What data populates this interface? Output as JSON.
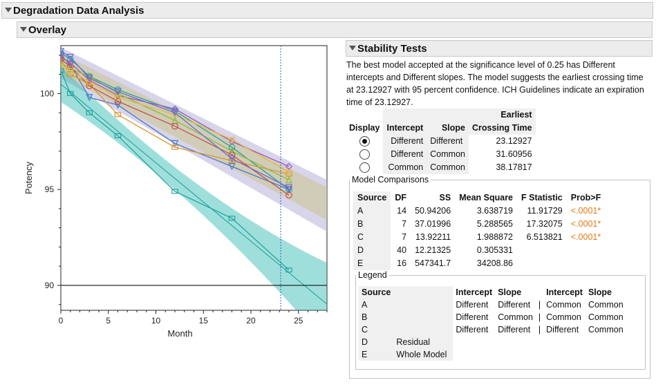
{
  "header": {
    "title": "Degradation Data Analysis"
  },
  "overlay": {
    "title": "Overlay"
  },
  "stability": {
    "title": "Stability Tests",
    "description": "The best model accepted at the significance level of 0.25 has Different intercepts and Different slopes. The model suggests the earliest crossing time at 23.12927 with 95 percent confidence. ICH Guidelines indicate an expiration time of 23.12927.",
    "table": {
      "headers": {
        "display": "Display",
        "intercept": "Intercept",
        "slope": "Slope",
        "crossing_line1": "Earliest",
        "crossing_line2": "Crossing Time"
      },
      "rows": [
        {
          "intercept": "Different",
          "slope": "Different",
          "crossing": "23.12927",
          "selected": true
        },
        {
          "intercept": "Different",
          "slope": "Common",
          "crossing": "31.60956",
          "selected": false
        },
        {
          "intercept": "Common",
          "slope": "Common",
          "crossing": "38.17817",
          "selected": false
        }
      ]
    }
  },
  "model_comparisons": {
    "title": "Model Comparisons",
    "headers": {
      "source": "Source",
      "df": "DF",
      "ss": "SS",
      "ms": "Mean Square",
      "f": "F Statistic",
      "p": "Prob>F"
    },
    "rows": [
      {
        "source": "A",
        "df": "14",
        "ss": "50.94206",
        "ms": "3.638719",
        "f": "11.91729",
        "p": "<.0001*"
      },
      {
        "source": "B",
        "df": "7",
        "ss": "37.01996",
        "ms": "5.288565",
        "f": "17.32075",
        "p": "<.0001*"
      },
      {
        "source": "C",
        "df": "7",
        "ss": "13.92211",
        "ms": "1.988872",
        "f": "6.513821",
        "p": "<.0001*"
      },
      {
        "source": "D",
        "df": "40",
        "ss": "12.21325",
        "ms": "0.305331",
        "f": "",
        "p": ""
      },
      {
        "source": "E",
        "df": "16",
        "ss": "547341.7",
        "ms": "34208.86",
        "f": "",
        "p": ""
      }
    ],
    "sig_color": "#e07a10"
  },
  "legend": {
    "title": "Legend",
    "headers": {
      "source": "Source",
      "intercept1": "Intercept",
      "slope1": "Slope",
      "intercept2": "Intercept",
      "slope2": "Slope"
    },
    "rows": [
      {
        "source": "A",
        "desc": "",
        "i1": "Different",
        "s1": "Different",
        "sep": "|",
        "i2": "Common",
        "s2": "Common"
      },
      {
        "source": "B",
        "desc": "",
        "i1": "Different",
        "s1": "Common",
        "sep": "|",
        "i2": "Common",
        "s2": "Common"
      },
      {
        "source": "C",
        "desc": "",
        "i1": "Different",
        "s1": "Different",
        "sep": "|",
        "i2": "Different",
        "s2": "Common"
      },
      {
        "source": "D",
        "desc": "Residual",
        "i1": "",
        "s1": "",
        "sep": "",
        "i2": "",
        "s2": ""
      },
      {
        "source": "E",
        "desc": "Whole Model",
        "i1": "",
        "s1": "",
        "sep": "",
        "i2": "",
        "s2": ""
      }
    ]
  },
  "chart_data": {
    "type": "line",
    "xlabel": "Month",
    "ylabel": "Potency",
    "xlim": [
      0,
      28
    ],
    "ylim": [
      88.7,
      102.5
    ],
    "x_ticks": [
      0,
      5,
      10,
      15,
      20,
      25
    ],
    "y_ticks": [
      90,
      95,
      100
    ],
    "spec_limit": 90,
    "crossing_time": 23.12927,
    "band_color": "#2ab7b0",
    "fan": {
      "x_start": 0,
      "x_end": 28,
      "upper_start": 102.4,
      "lower_start": 100.8,
      "upper_end": 95.5,
      "lower_end": 92.8
    },
    "series": [
      {
        "color": "#22a3a0",
        "marker": "square",
        "x": [
          0,
          1,
          3,
          6,
          12,
          18,
          24
        ],
        "y": [
          101.2,
          100.0,
          99.0,
          97.8,
          94.9,
          93.5,
          90.8
        ]
      },
      {
        "color": "#22a3a0",
        "marker": "circle",
        "x": [
          0,
          1,
          3,
          6,
          12,
          18,
          24
        ],
        "y": [
          102.1,
          101.8,
          100.9,
          100.2,
          99.1,
          97.2,
          95.0
        ]
      },
      {
        "color": "#4a78c8",
        "marker": "triangle-down",
        "x": [
          0,
          1,
          3,
          6,
          12,
          18,
          24
        ],
        "y": [
          102.0,
          101.5,
          99.8,
          99.4,
          97.4,
          96.2,
          95.0
        ]
      },
      {
        "color": "#d9952a",
        "marker": "square",
        "x": [
          0,
          1,
          3,
          6,
          12,
          18,
          24
        ],
        "y": [
          101.7,
          101.0,
          100.5,
          98.9,
          97.2,
          96.5,
          95.8
        ]
      },
      {
        "color": "#9b59b6",
        "marker": "diamond",
        "x": [
          0,
          1,
          3,
          6,
          12,
          18,
          24
        ],
        "y": [
          101.9,
          101.6,
          100.7,
          99.9,
          99.2,
          97.5,
          96.2
        ]
      },
      {
        "color": "#8db83e",
        "marker": "triangle-up",
        "x": [
          0,
          1,
          3,
          6,
          12,
          18,
          24
        ],
        "y": [
          101.6,
          101.3,
          100.9,
          100.0,
          98.6,
          97.0,
          95.5
        ]
      },
      {
        "color": "#c0504d",
        "marker": "circle",
        "x": [
          0,
          1,
          3,
          6,
          12,
          18,
          24
        ],
        "y": [
          101.8,
          101.4,
          100.4,
          99.6,
          98.3,
          96.8,
          94.7
        ]
      },
      {
        "color": "#e3b84a",
        "marker": "square",
        "x": [
          0,
          1,
          3,
          6,
          12,
          18,
          24
        ],
        "y": [
          101.5,
          101.2,
          100.6,
          99.8,
          98.9,
          97.6,
          95.9
        ]
      },
      {
        "color": "#6a6ad0",
        "marker": "triangle-down",
        "x": [
          0,
          1,
          3,
          6,
          12,
          18,
          24
        ],
        "y": [
          102.2,
          101.9,
          100.8,
          100.1,
          99.0,
          96.6,
          95.1
        ]
      }
    ]
  }
}
